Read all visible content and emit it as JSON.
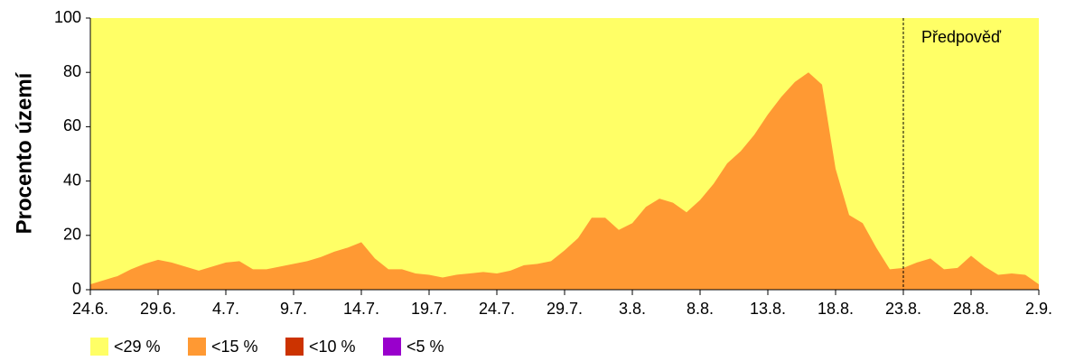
{
  "chart_data": {
    "type": "area",
    "y_label": "Procento území",
    "annotation": "Předpověď",
    "forecast_from": "23.8.",
    "categories": [
      "24.6.",
      null,
      null,
      null,
      null,
      "29.6.",
      null,
      null,
      null,
      null,
      "4.7.",
      null,
      null,
      null,
      null,
      "9.7.",
      null,
      null,
      null,
      null,
      "14.7.",
      null,
      null,
      null,
      null,
      "19.7.",
      null,
      null,
      null,
      null,
      "24.7.",
      null,
      null,
      null,
      null,
      "29.7.",
      null,
      null,
      null,
      null,
      "3.8.",
      null,
      null,
      null,
      null,
      "8.8.",
      null,
      null,
      null,
      null,
      "13.8.",
      null,
      null,
      null,
      null,
      "18.8.",
      null,
      null,
      null,
      null,
      "23.8.",
      null,
      null,
      null,
      null,
      "28.8.",
      null,
      null,
      null,
      null,
      "2.9."
    ],
    "series": [
      {
        "name": "<29 %",
        "color": "#ffff66",
        "values": [
          100,
          100,
          100,
          100,
          100,
          100,
          100,
          100,
          100,
          100,
          100,
          100,
          100,
          100,
          100,
          100,
          100,
          100,
          100,
          100,
          100,
          100,
          100,
          100,
          100,
          100,
          100,
          100,
          100,
          100,
          100,
          100,
          100,
          100,
          100,
          100,
          100,
          100,
          100,
          100,
          100,
          100,
          100,
          100,
          100,
          100,
          100,
          100,
          100,
          100,
          100,
          100,
          100,
          100,
          100,
          100,
          100,
          100,
          100,
          100,
          100,
          100,
          100,
          100,
          100,
          100,
          100,
          100,
          100,
          100,
          100
        ]
      },
      {
        "name": "<15 %",
        "color": "#ff9933",
        "values": [
          2,
          3.5,
          5,
          7.5,
          9.5,
          11,
          10,
          8.5,
          7,
          8.5,
          10,
          10.5,
          7.5,
          7.5,
          8.5,
          9.5,
          10.5,
          12,
          14,
          15.5,
          17.5,
          11.5,
          7.5,
          7.5,
          6,
          5.5,
          4.5,
          5.5,
          6,
          6.5,
          6,
          7,
          9,
          9.5,
          10.5,
          14.5,
          19,
          26.5,
          26.5,
          22,
          24.5,
          30.5,
          33.5,
          32,
          28.5,
          33,
          39,
          46.5,
          51,
          57,
          64.5,
          71,
          76.5,
          80,
          75.5,
          44.5,
          27.5,
          24.5,
          15.5,
          7.5,
          8,
          10,
          11.5,
          7.5,
          8,
          12.5,
          8.5,
          5.5,
          6,
          5.5,
          2
        ]
      },
      {
        "name": "<10 %",
        "color": "#cc3300",
        "values": [
          0,
          0,
          0,
          0,
          0,
          0,
          0,
          0,
          0,
          0,
          0,
          0,
          0,
          0,
          0,
          0,
          0,
          0,
          0,
          0,
          0,
          0,
          0,
          0,
          0,
          0,
          0,
          0,
          0,
          0,
          0,
          0,
          0,
          0,
          0,
          0,
          0,
          0,
          0,
          0,
          0,
          0,
          0,
          0,
          0,
          0,
          0,
          0,
          0,
          0,
          0,
          0,
          0,
          0,
          0,
          0,
          0,
          0,
          0,
          0,
          0,
          0,
          0,
          0,
          0,
          0,
          0,
          0,
          0,
          0,
          0
        ]
      },
      {
        "name": "<5 %",
        "color": "#9900cc",
        "values": [
          0,
          0,
          0,
          0,
          0,
          0,
          0,
          0,
          0,
          0,
          0,
          0,
          0,
          0,
          0,
          0,
          0,
          0,
          0,
          0,
          0,
          0,
          0,
          0,
          0,
          0,
          0,
          0,
          0,
          0,
          0,
          0,
          0,
          0,
          0,
          0,
          0,
          0,
          0,
          0,
          0,
          0,
          0,
          0,
          0,
          0,
          0,
          0,
          0,
          0,
          0,
          0,
          0,
          0,
          0,
          0,
          0,
          0,
          0,
          0,
          0,
          0,
          0,
          0,
          0,
          0,
          0,
          0,
          0,
          0,
          0
        ]
      }
    ],
    "ylim": [
      0,
      100
    ],
    "yticks": [
      0,
      20,
      40,
      60,
      80,
      100
    ]
  }
}
